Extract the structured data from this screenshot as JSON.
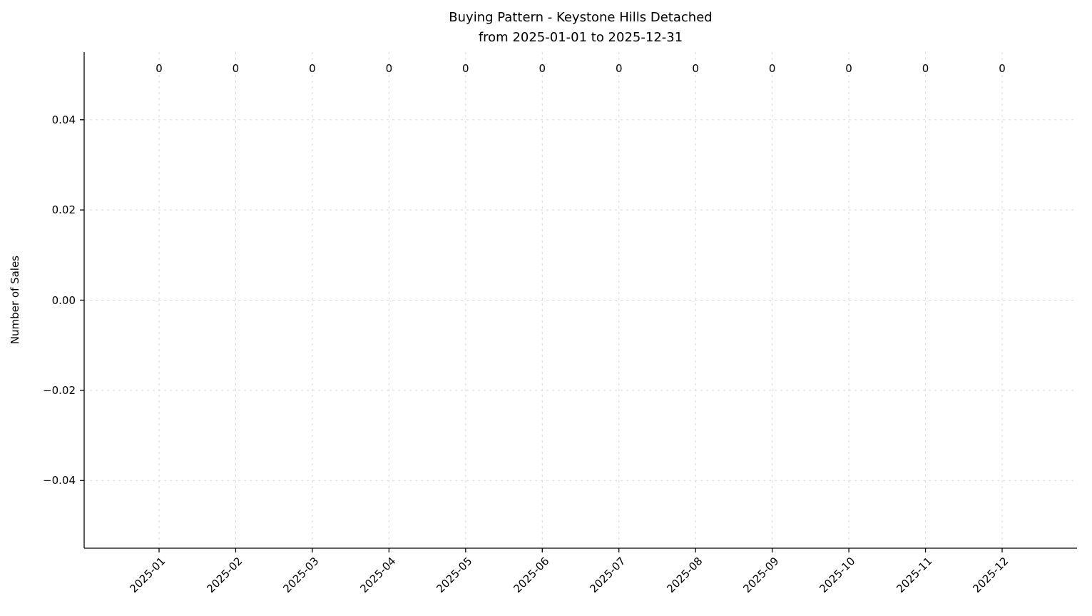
{
  "figure": {
    "background": "#ffffff",
    "text_color": "#000000",
    "grid_color": "#d8d8d8",
    "spine_color": "#000000"
  },
  "chart_data": {
    "type": "bar",
    "title": "Buying Pattern - Keystone Hills Detached\nfrom 2025-01-01 to 2025-12-31",
    "title_lines": [
      "Buying Pattern - Keystone Hills Detached",
      "from 2025-01-01 to 2025-12-31"
    ],
    "categories": [
      "2025-01",
      "2025-02",
      "2025-03",
      "2025-04",
      "2025-05",
      "2025-06",
      "2025-07",
      "2025-08",
      "2025-09",
      "2025-10",
      "2025-11",
      "2025-12"
    ],
    "values": [
      0,
      0,
      0,
      0,
      0,
      0,
      0,
      0,
      0,
      0,
      0,
      0
    ],
    "bar_labels": [
      "0",
      "0",
      "0",
      "0",
      "0",
      "0",
      "0",
      "0",
      "0",
      "0",
      "0",
      "0"
    ],
    "xlabel": "",
    "ylabel": "Number of Sales",
    "ylim": [
      -0.055,
      0.055
    ],
    "yticks": [
      {
        "value": 0.04,
        "label": "0.04"
      },
      {
        "value": 0.02,
        "label": "0.02"
      },
      {
        "value": 0.0,
        "label": "0.00"
      },
      {
        "value": -0.02,
        "label": "−0.02"
      },
      {
        "value": -0.04,
        "label": "−0.04"
      }
    ],
    "grid": true,
    "grid_axis": "both",
    "grid_linestyle": "dashed",
    "x_tick_rotation": 45,
    "legend_position": "none",
    "bar_color": "#4c72b0"
  }
}
